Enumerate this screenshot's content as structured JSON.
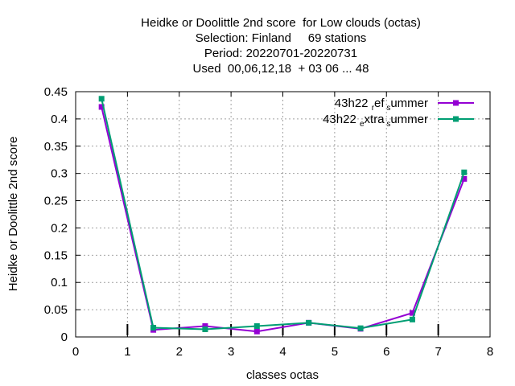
{
  "chart_data": {
    "type": "line",
    "title_lines": [
      "Heidke or Doolittle 2nd score  for Low clouds (octas)",
      "Selection: Finland     69 stations",
      "Period: 20220701-20220731",
      "Used  00,06,12,18  + 03 06 ... 48"
    ],
    "xlabel": "classes octas",
    "ylabel": "Heidke or Doolittle 2nd score",
    "xlim": [
      0,
      8
    ],
    "ylim": [
      0,
      0.45
    ],
    "x_ticks": [
      "0",
      "1",
      "2",
      "3",
      "4",
      "5",
      "6",
      "7",
      "8"
    ],
    "y_ticks": [
      "0",
      "0.05",
      "0.1",
      "0.15",
      "0.2",
      "0.25",
      "0.3",
      "0.35",
      "0.4",
      "0.45"
    ],
    "grid": true,
    "legend_position": "top-right",
    "series": [
      {
        "legend_parts": [
          "43h22 ",
          "r",
          "ef",
          "s",
          "ummer"
        ],
        "color": "#9400d3",
        "x": [
          0.5,
          1.5,
          2.5,
          3.5,
          4.5,
          5.5,
          6.5,
          7.5
        ],
        "values": [
          0.422,
          0.013,
          0.02,
          0.01,
          0.026,
          0.015,
          0.044,
          0.29
        ]
      },
      {
        "legend_parts": [
          "43h22 ",
          "e",
          "xtra",
          "s",
          "ummer"
        ],
        "color": "#009e73",
        "x": [
          0.5,
          1.5,
          2.5,
          3.5,
          4.5,
          5.5,
          6.5,
          7.5
        ],
        "values": [
          0.437,
          0.017,
          0.014,
          0.02,
          0.026,
          0.016,
          0.032,
          0.302
        ]
      }
    ]
  }
}
